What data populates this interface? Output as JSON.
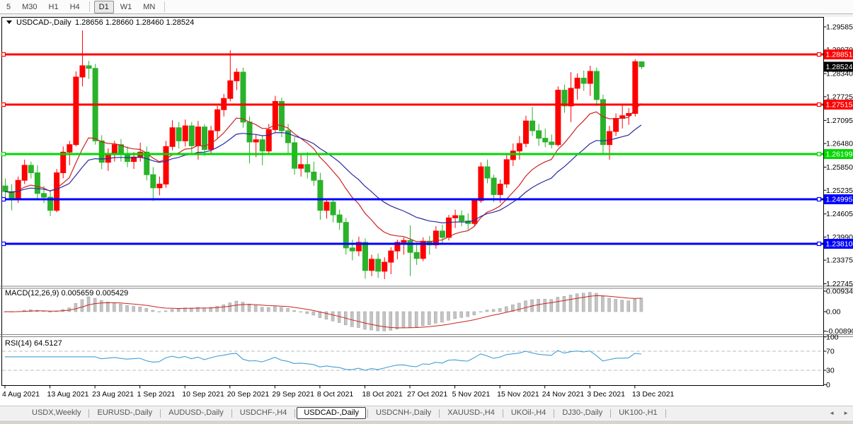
{
  "toolbar": {
    "items": [
      {
        "type": "btn",
        "label": "5",
        "active": false
      },
      {
        "type": "btn",
        "label": "M30",
        "active": false
      },
      {
        "type": "btn",
        "label": "H1",
        "active": false
      },
      {
        "type": "btn",
        "label": "H4",
        "active": false
      },
      {
        "type": "sep"
      },
      {
        "type": "btn",
        "label": "D1",
        "active": true
      },
      {
        "type": "btn",
        "label": "W1",
        "active": false
      },
      {
        "type": "btn",
        "label": "MN",
        "active": false
      },
      {
        "type": "sep"
      }
    ]
  },
  "chart": {
    "title": "USDCAD-,Daily",
    "ohlc": "1.28656 1.28660 1.28460 1.28524"
  },
  "chart_data": {
    "type": "candlestick",
    "symbol": "USDCAD-,Daily",
    "ohlc_display": {
      "open": "1.28656",
      "high": "1.28660",
      "low": "1.28460",
      "close": "1.28524"
    },
    "ylim": [
      1.227,
      1.2983
    ],
    "y_ticks": [
      "1.29585",
      "1.28970",
      "1.28340",
      "1.27725",
      "1.27095",
      "1.26480",
      "1.25850",
      "1.25235",
      "1.24605",
      "1.23990",
      "1.23375",
      "1.22745"
    ],
    "x_labels": [
      "4 Aug 2021",
      "13 Aug 2021",
      "23 Aug 2021",
      "1 Sep 2021",
      "10 Sep 2021",
      "20 Sep 2021",
      "29 Sep 2021",
      "8 Oct 2021",
      "18 Oct 2021",
      "27 Oct 2021",
      "5 Nov 2021",
      "15 Nov 2021",
      "24 Nov 2021",
      "3 Dec 2021",
      "13 Dec 2021"
    ],
    "x_label_every": 7,
    "horizontal_lines": [
      {
        "price": 1.28851,
        "label": "1.28851",
        "color": "#ff0000"
      },
      {
        "price": 1.27515,
        "label": "1.27515",
        "color": "#ff0000"
      },
      {
        "price": 1.26199,
        "label": "1.26199",
        "color": "#00d800"
      },
      {
        "price": 1.24995,
        "label": "1.24995",
        "color": "#0000ff"
      },
      {
        "price": 1.2381,
        "label": "1.23810",
        "color": "#0000ff"
      }
    ],
    "current_price": {
      "value": 1.28524,
      "label": "1.28524",
      "bg": "#000000"
    },
    "colors": {
      "up_candle": "#ff0000",
      "down_candle": "#2ab22a",
      "ma_fast": "#cc2222",
      "ma_slow": "#2929a3",
      "macd_histogram": "#c4c4c4",
      "macd_signal": "#cc2222",
      "rsi_line": "#419ed6",
      "rsi_levels_dash": "#bcbcbc"
    },
    "moving_averages": [
      {
        "name": "ma-fast",
        "period": 13
      },
      {
        "name": "ma-slow",
        "period": 26
      }
    ],
    "macd": {
      "label": "MACD(12,26,9) 0.005659 0.005429",
      "params": [
        12,
        26,
        9
      ],
      "main_display": "0.005659",
      "signal_display": "0.005429",
      "y_ticks": [
        {
          "label": "0.009345",
          "value": 0.009345
        },
        {
          "label": "0.00",
          "value": 0
        },
        {
          "label": "-0.00890",
          "value": -0.0089
        }
      ]
    },
    "rsi": {
      "label": "RSI(14) 64.5127",
      "period": 14,
      "value_display": "64.5127",
      "y_ticks": [
        100,
        70,
        30,
        0
      ],
      "levels": [
        70,
        30
      ]
    },
    "candles": [
      [
        1.2535,
        1.2555,
        1.2505,
        1.252
      ],
      [
        1.252,
        1.254,
        1.247,
        1.25
      ],
      [
        1.25,
        1.256,
        1.249,
        1.255
      ],
      [
        1.255,
        1.2605,
        1.254,
        1.259
      ],
      [
        1.259,
        1.26,
        1.2555,
        1.257
      ],
      [
        1.257,
        1.259,
        1.25,
        1.2515
      ],
      [
        1.2515,
        1.2535,
        1.249,
        1.2505
      ],
      [
        1.2505,
        1.252,
        1.2455,
        1.247
      ],
      [
        1.247,
        1.258,
        1.2465,
        1.257
      ],
      [
        1.257,
        1.264,
        1.2555,
        1.2625
      ],
      [
        1.2625,
        1.2655,
        1.259,
        1.2645
      ],
      [
        1.2645,
        1.284,
        1.264,
        1.2825
      ],
      [
        1.2825,
        1.2949,
        1.28,
        1.2855
      ],
      [
        1.2855,
        1.2868,
        1.282,
        1.2848
      ],
      [
        1.2848,
        1.286,
        1.2645,
        1.2655
      ],
      [
        1.2655,
        1.267,
        1.258,
        1.2598
      ],
      [
        1.2598,
        1.2635,
        1.2575,
        1.262
      ],
      [
        1.262,
        1.2655,
        1.26,
        1.2645
      ],
      [
        1.2645,
        1.266,
        1.26,
        1.2618
      ],
      [
        1.2618,
        1.264,
        1.2585,
        1.26
      ],
      [
        1.26,
        1.2625,
        1.258,
        1.2612
      ],
      [
        1.2612,
        1.265,
        1.26,
        1.2625
      ],
      [
        1.2625,
        1.264,
        1.255,
        1.2565
      ],
      [
        1.2565,
        1.2585,
        1.2495,
        1.253
      ],
      [
        1.253,
        1.256,
        1.251,
        1.254
      ],
      [
        1.254,
        1.2655,
        1.253,
        1.264
      ],
      [
        1.264,
        1.271,
        1.263,
        1.269
      ],
      [
        1.269,
        1.2705,
        1.2635,
        1.2655
      ],
      [
        1.2655,
        1.2712,
        1.264,
        1.2695
      ],
      [
        1.2695,
        1.2705,
        1.262,
        1.2642
      ],
      [
        1.2642,
        1.2708,
        1.2605,
        1.2692
      ],
      [
        1.2692,
        1.27,
        1.2615,
        1.2632
      ],
      [
        1.2632,
        1.2695,
        1.262,
        1.2682
      ],
      [
        1.2682,
        1.2748,
        1.266,
        1.2738
      ],
      [
        1.2738,
        1.278,
        1.272,
        1.2768
      ],
      [
        1.2768,
        1.2896,
        1.276,
        1.2815
      ],
      [
        1.2815,
        1.2848,
        1.279,
        1.2838
      ],
      [
        1.2838,
        1.285,
        1.269,
        1.2705
      ],
      [
        1.2705,
        1.272,
        1.2595,
        1.2652
      ],
      [
        1.2652,
        1.2672,
        1.2612,
        1.2658
      ],
      [
        1.2658,
        1.267,
        1.259,
        1.2628
      ],
      [
        1.2628,
        1.27,
        1.2618,
        1.2685
      ],
      [
        1.2685,
        1.2775,
        1.2675,
        1.276
      ],
      [
        1.276,
        1.277,
        1.2665,
        1.2682
      ],
      [
        1.2682,
        1.27,
        1.262,
        1.265
      ],
      [
        1.265,
        1.2665,
        1.2565,
        1.2582
      ],
      [
        1.2582,
        1.2622,
        1.256,
        1.2592
      ],
      [
        1.2592,
        1.2625,
        1.2555,
        1.2572
      ],
      [
        1.2572,
        1.26,
        1.2535,
        1.255
      ],
      [
        1.255,
        1.257,
        1.2445,
        1.247
      ],
      [
        1.247,
        1.2502,
        1.2448,
        1.2492
      ],
      [
        1.2492,
        1.25,
        1.2438,
        1.2458
      ],
      [
        1.2458,
        1.2472,
        1.2418,
        1.2438
      ],
      [
        1.2438,
        1.245,
        1.2352,
        1.237
      ],
      [
        1.237,
        1.2392,
        1.2337,
        1.2362
      ],
      [
        1.2362,
        1.24,
        1.2348,
        1.2385
      ],
      [
        1.2385,
        1.2395,
        1.2288,
        1.231
      ],
      [
        1.231,
        1.2352,
        1.2295,
        1.234
      ],
      [
        1.234,
        1.2355,
        1.229,
        1.2308
      ],
      [
        1.2308,
        1.2345,
        1.2287,
        1.2332
      ],
      [
        1.2332,
        1.2372,
        1.23,
        1.2362
      ],
      [
        1.2362,
        1.2392,
        1.234,
        1.2385
      ],
      [
        1.2385,
        1.2398,
        1.2352,
        1.239
      ],
      [
        1.239,
        1.243,
        1.2295,
        1.2358
      ],
      [
        1.2358,
        1.2378,
        1.2325,
        1.2342
      ],
      [
        1.2342,
        1.2398,
        1.2335,
        1.2388
      ],
      [
        1.2388,
        1.2402,
        1.2352,
        1.2378
      ],
      [
        1.2378,
        1.2428,
        1.2368,
        1.2415
      ],
      [
        1.2415,
        1.2432,
        1.2382,
        1.2398
      ],
      [
        1.2398,
        1.2458,
        1.239,
        1.245
      ],
      [
        1.245,
        1.2472,
        1.2423,
        1.2456
      ],
      [
        1.2456,
        1.247,
        1.2428,
        1.2442
      ],
      [
        1.2442,
        1.2462,
        1.2418,
        1.2435
      ],
      [
        1.2435,
        1.2502,
        1.2428,
        1.2496
      ],
      [
        1.2496,
        1.2598,
        1.249,
        1.2586
      ],
      [
        1.2586,
        1.2605,
        1.2542,
        1.2556
      ],
      [
        1.2556,
        1.2565,
        1.2492,
        1.2512
      ],
      [
        1.2512,
        1.2552,
        1.249,
        1.254
      ],
      [
        1.254,
        1.2618,
        1.253,
        1.2605
      ],
      [
        1.2605,
        1.2648,
        1.2588,
        1.2628
      ],
      [
        1.2628,
        1.2668,
        1.2605,
        1.2648
      ],
      [
        1.2648,
        1.2722,
        1.2638,
        1.2708
      ],
      [
        1.2708,
        1.2745,
        1.2668,
        1.2682
      ],
      [
        1.2682,
        1.27,
        1.2642,
        1.2662
      ],
      [
        1.2662,
        1.2688,
        1.2638,
        1.2652
      ],
      [
        1.2652,
        1.2672,
        1.2635,
        1.2645
      ],
      [
        1.2645,
        1.28,
        1.264,
        1.279
      ],
      [
        1.279,
        1.2805,
        1.273,
        1.2748
      ],
      [
        1.2748,
        1.2838,
        1.2705,
        1.2795
      ],
      [
        1.2795,
        1.2835,
        1.2765,
        1.2822
      ],
      [
        1.2822,
        1.2842,
        1.2788,
        1.2808
      ],
      [
        1.2808,
        1.2855,
        1.2775,
        1.284
      ],
      [
        1.284,
        1.285,
        1.2748,
        1.2765
      ],
      [
        1.2765,
        1.2778,
        1.2622,
        1.2645
      ],
      [
        1.2645,
        1.2695,
        1.2605,
        1.268
      ],
      [
        1.268,
        1.2728,
        1.2668,
        1.2715
      ],
      [
        1.2715,
        1.2752,
        1.2688,
        1.2722
      ],
      [
        1.2722,
        1.2742,
        1.2698,
        1.2728
      ],
      [
        1.2728,
        1.2872,
        1.272,
        1.2866
      ],
      [
        1.28656,
        1.2866,
        1.2846,
        1.28524
      ]
    ]
  },
  "tabs": {
    "items": [
      {
        "label": "USDX,Weekly",
        "active": false
      },
      {
        "label": "EURUSD-,Daily",
        "active": false
      },
      {
        "label": "AUDUSD-,Daily",
        "active": false
      },
      {
        "label": "USDCHF-,H4",
        "active": false
      },
      {
        "label": "USDCAD-,Daily",
        "active": true
      },
      {
        "label": "USDCNH-,Daily",
        "active": false
      },
      {
        "label": "XAUUSD-,H4",
        "active": false
      },
      {
        "label": "UKOil-,H4",
        "active": false
      },
      {
        "label": "DJ30-,Daily",
        "active": false
      },
      {
        "label": "UK100-,H1",
        "active": false
      }
    ],
    "scroll_left": "◄",
    "scroll_right": "►"
  }
}
